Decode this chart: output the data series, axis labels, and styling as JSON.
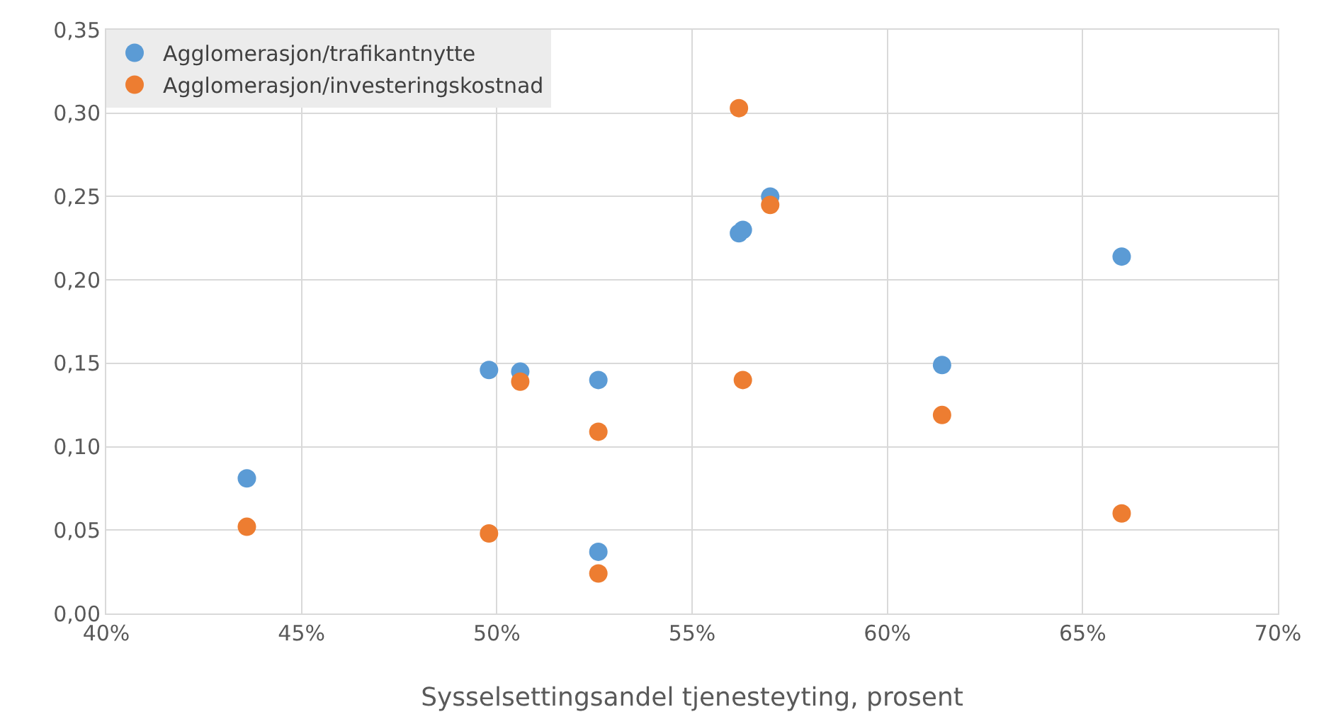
{
  "chart_data": {
    "type": "scatter",
    "xlabel": "Sysselsettingsandel tjenesteyting, prosent",
    "series": [
      {
        "name": "Agglomerasjon/trafikantnytte",
        "color": "#5b9bd5",
        "x": [
          43.6,
          49.8,
          50.6,
          52.6,
          52.6,
          56.2,
          56.3,
          57.0,
          61.4,
          66.0
        ],
        "values": [
          0.081,
          0.146,
          0.145,
          0.14,
          0.037,
          0.228,
          0.23,
          0.25,
          0.149,
          0.214
        ]
      },
      {
        "name": "Agglomerasjon/investeringskostnad",
        "color": "#ed7d31",
        "x": [
          43.6,
          49.8,
          50.6,
          52.6,
          52.6,
          56.2,
          56.3,
          57.0,
          61.4,
          66.0
        ],
        "values": [
          0.052,
          0.048,
          0.139,
          0.109,
          0.024,
          0.303,
          0.14,
          0.245,
          0.119,
          0.06
        ]
      }
    ],
    "xlim": [
      40,
      70
    ],
    "xticks": [
      {
        "value": 40,
        "label": "40%"
      },
      {
        "value": 45,
        "label": "45%"
      },
      {
        "value": 50,
        "label": "50%"
      },
      {
        "value": 55,
        "label": "55%"
      },
      {
        "value": 60,
        "label": "60%"
      },
      {
        "value": 65,
        "label": "65%"
      },
      {
        "value": 70,
        "label": "70%"
      }
    ],
    "ylim": [
      0,
      0.35
    ],
    "yticks": [
      {
        "value": 0,
        "label": "0,00"
      },
      {
        "value": 0.05,
        "label": "0,05"
      },
      {
        "value": 0.1,
        "label": "0,10"
      },
      {
        "value": 0.15,
        "label": "0,15"
      },
      {
        "value": 0.2,
        "label": "0,20"
      },
      {
        "value": 0.25,
        "label": "0,25"
      },
      {
        "value": 0.3,
        "label": "0,30"
      },
      {
        "value": 0.35,
        "label": "0,35"
      }
    ],
    "grid": true,
    "legend": "top left",
    "marker": "circle"
  }
}
